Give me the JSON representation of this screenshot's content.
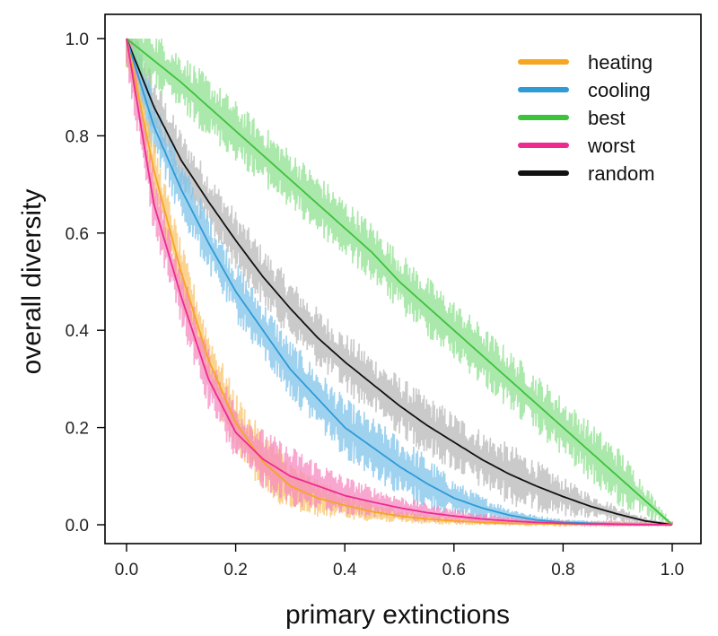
{
  "chart_data": {
    "type": "line",
    "xlabel": "primary extinctions",
    "ylabel": "overall diversity",
    "xlim": [
      0.0,
      1.0
    ],
    "ylim": [
      0.0,
      1.0
    ],
    "xticks": [
      "0.0",
      "0.2",
      "0.4",
      "0.6",
      "0.8",
      "1.0"
    ],
    "yticks": [
      "0.0",
      "0.2",
      "0.4",
      "0.6",
      "0.8",
      "1.0"
    ],
    "grid": false,
    "legend_position": "top-right",
    "x": [
      0.0,
      0.05,
      0.1,
      0.15,
      0.2,
      0.25,
      0.3,
      0.35,
      0.4,
      0.45,
      0.5,
      0.55,
      0.6,
      0.65,
      0.7,
      0.75,
      0.8,
      0.85,
      0.9,
      0.95,
      1.0
    ],
    "series": [
      {
        "name": "heating",
        "color": "#F5A623",
        "band_color": "#F8C46B",
        "values": [
          1.0,
          0.73,
          0.52,
          0.34,
          0.21,
          0.13,
          0.08,
          0.055,
          0.04,
          0.027,
          0.018,
          0.012,
          0.008,
          0.005,
          0.003,
          0.002,
          0.0015,
          0.001,
          0.0005,
          0.0002,
          0.0
        ]
      },
      {
        "name": "cooling",
        "color": "#2E9AD6",
        "band_color": "#7FC3EA",
        "values": [
          1.0,
          0.82,
          0.69,
          0.58,
          0.48,
          0.4,
          0.32,
          0.26,
          0.2,
          0.16,
          0.12,
          0.085,
          0.055,
          0.035,
          0.02,
          0.01,
          0.005,
          0.003,
          0.0015,
          0.0005,
          0.0
        ]
      },
      {
        "name": "best",
        "color": "#3CC23C",
        "band_color": "#8FE08F",
        "values": [
          1.0,
          0.955,
          0.91,
          0.86,
          0.81,
          0.76,
          0.71,
          0.66,
          0.61,
          0.56,
          0.5,
          0.45,
          0.4,
          0.35,
          0.3,
          0.25,
          0.2,
          0.15,
          0.1,
          0.05,
          0.0
        ]
      },
      {
        "name": "worst",
        "color": "#EE2A8E",
        "band_color": "#F58BC0",
        "values": [
          1.0,
          0.66,
          0.47,
          0.3,
          0.19,
          0.135,
          0.1,
          0.08,
          0.06,
          0.047,
          0.035,
          0.025,
          0.018,
          0.012,
          0.008,
          0.005,
          0.003,
          0.0015,
          0.0008,
          0.0003,
          0.0
        ]
      },
      {
        "name": "random",
        "color": "#111111",
        "band_color": "#B8B8B8",
        "values": [
          1.0,
          0.86,
          0.75,
          0.665,
          0.585,
          0.51,
          0.445,
          0.385,
          0.335,
          0.29,
          0.245,
          0.205,
          0.17,
          0.135,
          0.105,
          0.08,
          0.058,
          0.038,
          0.022,
          0.008,
          0.0
        ]
      }
    ]
  }
}
